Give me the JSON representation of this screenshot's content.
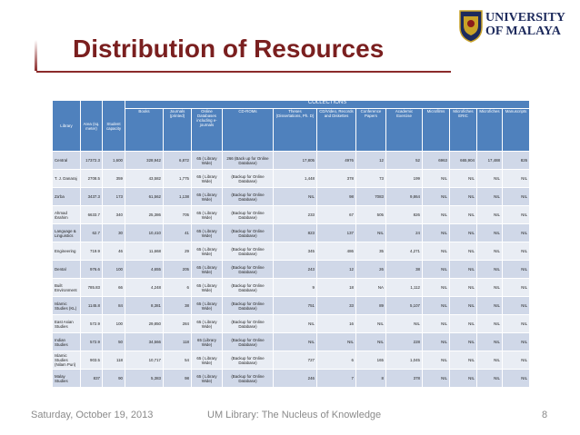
{
  "logo": {
    "line1": "UNIVERSITY",
    "line2": "OF MALAYA"
  },
  "title": "Distribution of Resources",
  "table": {
    "group": "COLLECTIONS",
    "columns": [
      "Library",
      "Area (sq. meter)",
      "Student capacity",
      "Books",
      "Journals (printed)",
      "Online Databases including e-journals",
      "CD-ROMs",
      "Theses (Dissertations, Ph. D)",
      "CD/Video, Records and Diskettes",
      "Conference Papers",
      "Academic Exercise",
      "Microfilms",
      "Microfiches ERIC",
      "Microfiches",
      "Manuscripts"
    ],
    "rows": [
      [
        "Central",
        "17372.3",
        "1,600",
        "328,942",
        "6,872",
        "65 ( Library Wide)",
        "266 (Back up for Online Database)",
        "17,805",
        "4976",
        "12",
        "52",
        "6963",
        "665,904",
        "17,488",
        "826"
      ],
      [
        "T. J. Danaraj",
        "2708.5",
        "359",
        "43,582",
        "1,775",
        "65 ( Library Wide)",
        "(Backup for Online Database)",
        "1,448",
        "378",
        "73",
        "199",
        "NIL",
        "NIL",
        "NIL",
        "NIL"
      ],
      [
        "Za'ba",
        "3437.3",
        "173",
        "61,562",
        "1,138",
        "65 ( Library Wide)",
        "(Backup for Online Database)",
        "NIL",
        "98",
        "7083",
        "9,864",
        "NIL",
        "NIL",
        "NIL",
        "NIL"
      ],
      [
        "Ahmad Ibrahim",
        "6633.7",
        "340",
        "25,386",
        "705",
        "65 ( Library Wide)",
        "(Backup for Online Database)",
        "233",
        "67",
        "505",
        "826",
        "NIL",
        "NIL",
        "NIL",
        "NIL"
      ],
      [
        "Language & Linguistics",
        "62.7",
        "30",
        "10,410",
        "41",
        "65 ( Library Wide)",
        "(Backup for Online Database)",
        "823",
        "137",
        "NIL",
        "24",
        "NIL",
        "NIL",
        "NIL",
        "NIL"
      ],
      [
        "Engineering",
        "719.9",
        "46",
        "11,668",
        "29",
        "65 ( Library Wide)",
        "(Backup for Online Database)",
        "345",
        "486",
        "35",
        "4,271",
        "NIL",
        "NIL",
        "NIL",
        "NIL"
      ],
      [
        "Dental",
        "976.6",
        "100",
        "4,655",
        "205",
        "65 ( Library Wide)",
        "(Backup for Online Database)",
        "243",
        "12",
        "26",
        "38",
        "NIL",
        "NIL",
        "NIL",
        "NIL"
      ],
      [
        "Built Environment",
        "785.83",
        "66",
        "4,248",
        "6",
        "65 ( Library Wide)",
        "(Backup for Online Database)",
        "9",
        "18",
        "NA",
        "1,112",
        "NIL",
        "NIL",
        "NIL",
        "NIL"
      ],
      [
        "Islamic Studies (KL)",
        "1145.8",
        "84",
        "8,381",
        "38",
        "65 ( Library Wide)",
        "(Backup for Online Database)",
        "751",
        "33",
        "89",
        "5,107",
        "NIL",
        "NIL",
        "NIL",
        "NIL"
      ],
      [
        "East Asian Studies",
        "572.9",
        "100",
        "29,850",
        "284",
        "65 ( Library Wide)",
        "(Backup for Online Database)",
        "NIL",
        "16",
        "NIL",
        "NIL",
        "NIL",
        "NIL",
        "NIL",
        "NIL"
      ],
      [
        "Indian Studies",
        "572.9",
        "50",
        "34,566",
        "118",
        "65 (Library Wide)",
        "(Backup for Online Database)",
        "NIL",
        "NIL",
        "NIL",
        "228",
        "NIL",
        "NIL",
        "NIL",
        "NIL"
      ],
      [
        "Islamic Studies (Nilam Puri)",
        "903.5",
        "118",
        "10,717",
        "54",
        "65 ( Library Wide)",
        "(Backup for Online Database)",
        "727",
        "6",
        "165",
        "1,045",
        "NIL",
        "NIL",
        "NIL",
        "NIL"
      ],
      [
        "Malay Studies",
        "837",
        "90",
        "5,383",
        "98",
        "65 ( Library Wide)",
        "(Backup for Online Database)",
        "246",
        "7",
        "8",
        "378",
        "NIL",
        "NIL",
        "NIL",
        "NIL"
      ]
    ]
  },
  "footer": {
    "date": "Saturday, October 19, 2013",
    "center": "UM Library: The Nucleus of Knowledge",
    "page": "8"
  }
}
